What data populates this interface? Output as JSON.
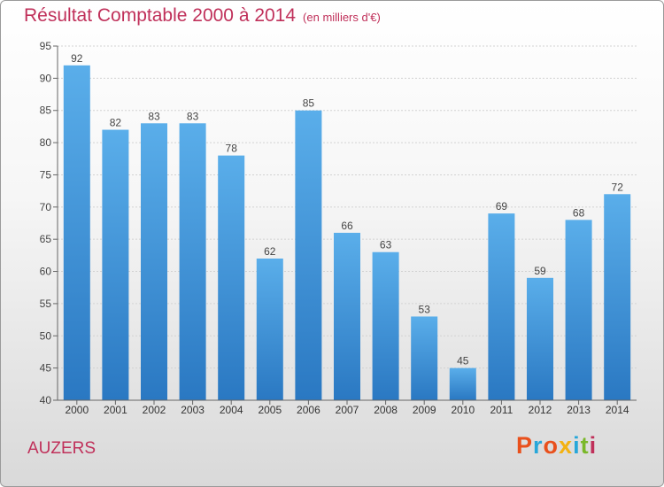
{
  "title": "Résultat Comptable 2000 à 2014",
  "unit": "(en milliers d'€)",
  "commune": "AUZERS",
  "logo": {
    "text": "Proxiti",
    "colors": [
      "#e9501c",
      "#27a7d9",
      "#e9501c",
      "#f3b212",
      "#27a7d9",
      "#7ab829",
      "#c0305a"
    ]
  },
  "chart_data": {
    "type": "bar",
    "title": "Résultat Comptable 2000 à 2014",
    "xlabel": "",
    "ylabel": "",
    "categories": [
      "2000",
      "2001",
      "2002",
      "2003",
      "2004",
      "2005",
      "2006",
      "2007",
      "2008",
      "2009",
      "2010",
      "2011",
      "2012",
      "2013",
      "2014"
    ],
    "values": [
      92,
      82,
      83,
      83,
      78,
      62,
      85,
      66,
      63,
      53,
      45,
      69,
      59,
      68,
      72
    ],
    "ylim": [
      40,
      95
    ],
    "yticks": [
      40,
      45,
      50,
      55,
      60,
      65,
      70,
      75,
      80,
      85,
      90,
      95
    ],
    "grid": true,
    "bar_color_top": "#5aaeea",
    "bar_color_bottom": "#2a78c2"
  }
}
